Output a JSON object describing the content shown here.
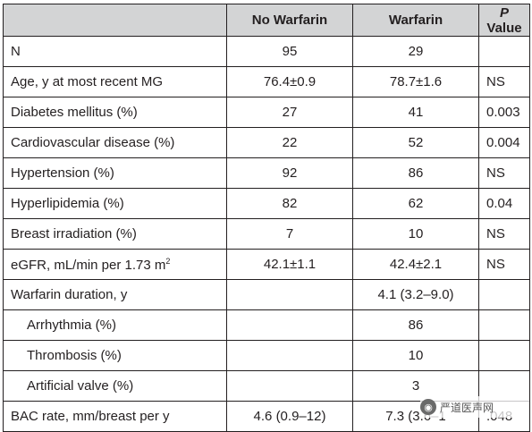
{
  "table": {
    "headers": [
      "",
      "No Warfarin",
      "Warfarin",
      "P",
      "Value"
    ],
    "rows": [
      {
        "label": "N",
        "no_warfarin": "95",
        "warfarin": "29",
        "p": ""
      },
      {
        "label": "Age, y at most recent MG",
        "no_warfarin": "76.4±0.9",
        "warfarin": "78.7±1.6",
        "p": "NS"
      },
      {
        "label": "Diabetes mellitus (%)",
        "no_warfarin": "27",
        "warfarin": "41",
        "p": "0.003"
      },
      {
        "label": "Cardiovascular disease (%)",
        "no_warfarin": "22",
        "warfarin": "52",
        "p": "0.004"
      },
      {
        "label": "Hypertension (%)",
        "no_warfarin": "92",
        "warfarin": "86",
        "p": "NS"
      },
      {
        "label": "Hyperlipidemia (%)",
        "no_warfarin": "82",
        "warfarin": "62",
        "p": "0.04"
      },
      {
        "label": "Breast irradiation (%)",
        "no_warfarin": "7",
        "warfarin": "10",
        "p": "NS"
      },
      {
        "label": "eGFR, mL/min per 1.73 m",
        "label_sup": "2",
        "no_warfarin": "42.1±1.1",
        "warfarin": "42.4±2.1",
        "p": "NS"
      },
      {
        "label": "Warfarin duration, y",
        "no_warfarin": "",
        "warfarin": "4.1 (3.2–9.0)",
        "p": ""
      },
      {
        "label": "Arrhythmia (%)",
        "no_warfarin": "",
        "warfarin": "86",
        "p": ""
      },
      {
        "label": "Thrombosis (%)",
        "no_warfarin": "",
        "warfarin": "10",
        "p": ""
      },
      {
        "label": "Artificial valve (%)",
        "no_warfarin": "",
        "warfarin": "3",
        "p": ""
      },
      {
        "label": "BAC rate, mm/breast per y",
        "no_warfarin": "4.6 (0.9–12)",
        "warfarin": "7.3 (3.6–1",
        "p": ".048"
      }
    ]
  },
  "watermark": {
    "text": "严道医声网",
    "icon": "wechat-icon"
  }
}
